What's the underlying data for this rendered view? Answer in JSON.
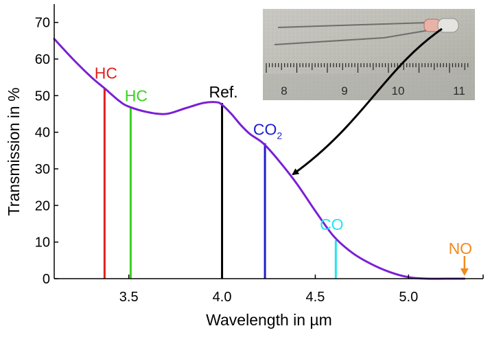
{
  "chart_data": {
    "type": "line",
    "title": "",
    "xlabel": "Wavelength in µm",
    "ylabel": "Transmission in %",
    "xlim": [
      3.1,
      5.4
    ],
    "ylim": [
      0,
      75
    ],
    "xticks": [
      3.5,
      4.0,
      4.5,
      5.0
    ],
    "xtick_labels": [
      "3.5",
      "4.0",
      "4.5",
      "5.0"
    ],
    "yticks": [
      0,
      10,
      20,
      30,
      40,
      50,
      60,
      70
    ],
    "ytick_labels": [
      "0",
      "10",
      "20",
      "30",
      "40",
      "50",
      "60",
      "70"
    ],
    "grid": false,
    "series": [
      {
        "name": "Transmission",
        "color": "#7a1fd6",
        "x": [
          3.1,
          3.2,
          3.3,
          3.37,
          3.45,
          3.5,
          3.6,
          3.7,
          3.8,
          3.9,
          3.97,
          4.0,
          4.05,
          4.1,
          4.15,
          4.22,
          4.3,
          4.4,
          4.5,
          4.6,
          4.7,
          4.8,
          4.9,
          5.0,
          5.1,
          5.2,
          5.3
        ],
        "y": [
          65.5,
          60.0,
          55.0,
          52.0,
          48.5,
          47.0,
          45.5,
          45.0,
          46.5,
          48.0,
          48.2,
          47.5,
          45.0,
          42.0,
          39.5,
          37.0,
          32.5,
          26.0,
          18.5,
          11.5,
          7.0,
          4.0,
          1.8,
          0.4,
          0.0,
          0.0,
          0.0
        ]
      }
    ],
    "gas_lines": [
      {
        "label": "HC",
        "x": 3.37,
        "y": 52.0,
        "color": "#e0201c"
      },
      {
        "label": "HC",
        "x": 3.51,
        "y": 47.0,
        "color": "#38d11e"
      },
      {
        "label": "Ref.",
        "x": 4.0,
        "y": 48.0,
        "color": "#000000"
      },
      {
        "label": "CO",
        "subscript": "2",
        "x": 4.23,
        "y": 37.0,
        "color": "#1c1cd0"
      },
      {
        "label": "CO",
        "x": 4.61,
        "y": 10.5,
        "color": "#22e5ee"
      },
      {
        "label": "NO",
        "x": 5.3,
        "y": 0.0,
        "color": "#f08a1e"
      }
    ],
    "annotations": [
      {
        "type": "photo-inset",
        "content": "Sensor with measuring scale",
        "scale_labels": [
          "8",
          "9",
          "10",
          "11"
        ]
      },
      {
        "type": "arrow",
        "from": "photo-inset",
        "to_x": 4.38,
        "to_y": 28.5
      }
    ]
  }
}
